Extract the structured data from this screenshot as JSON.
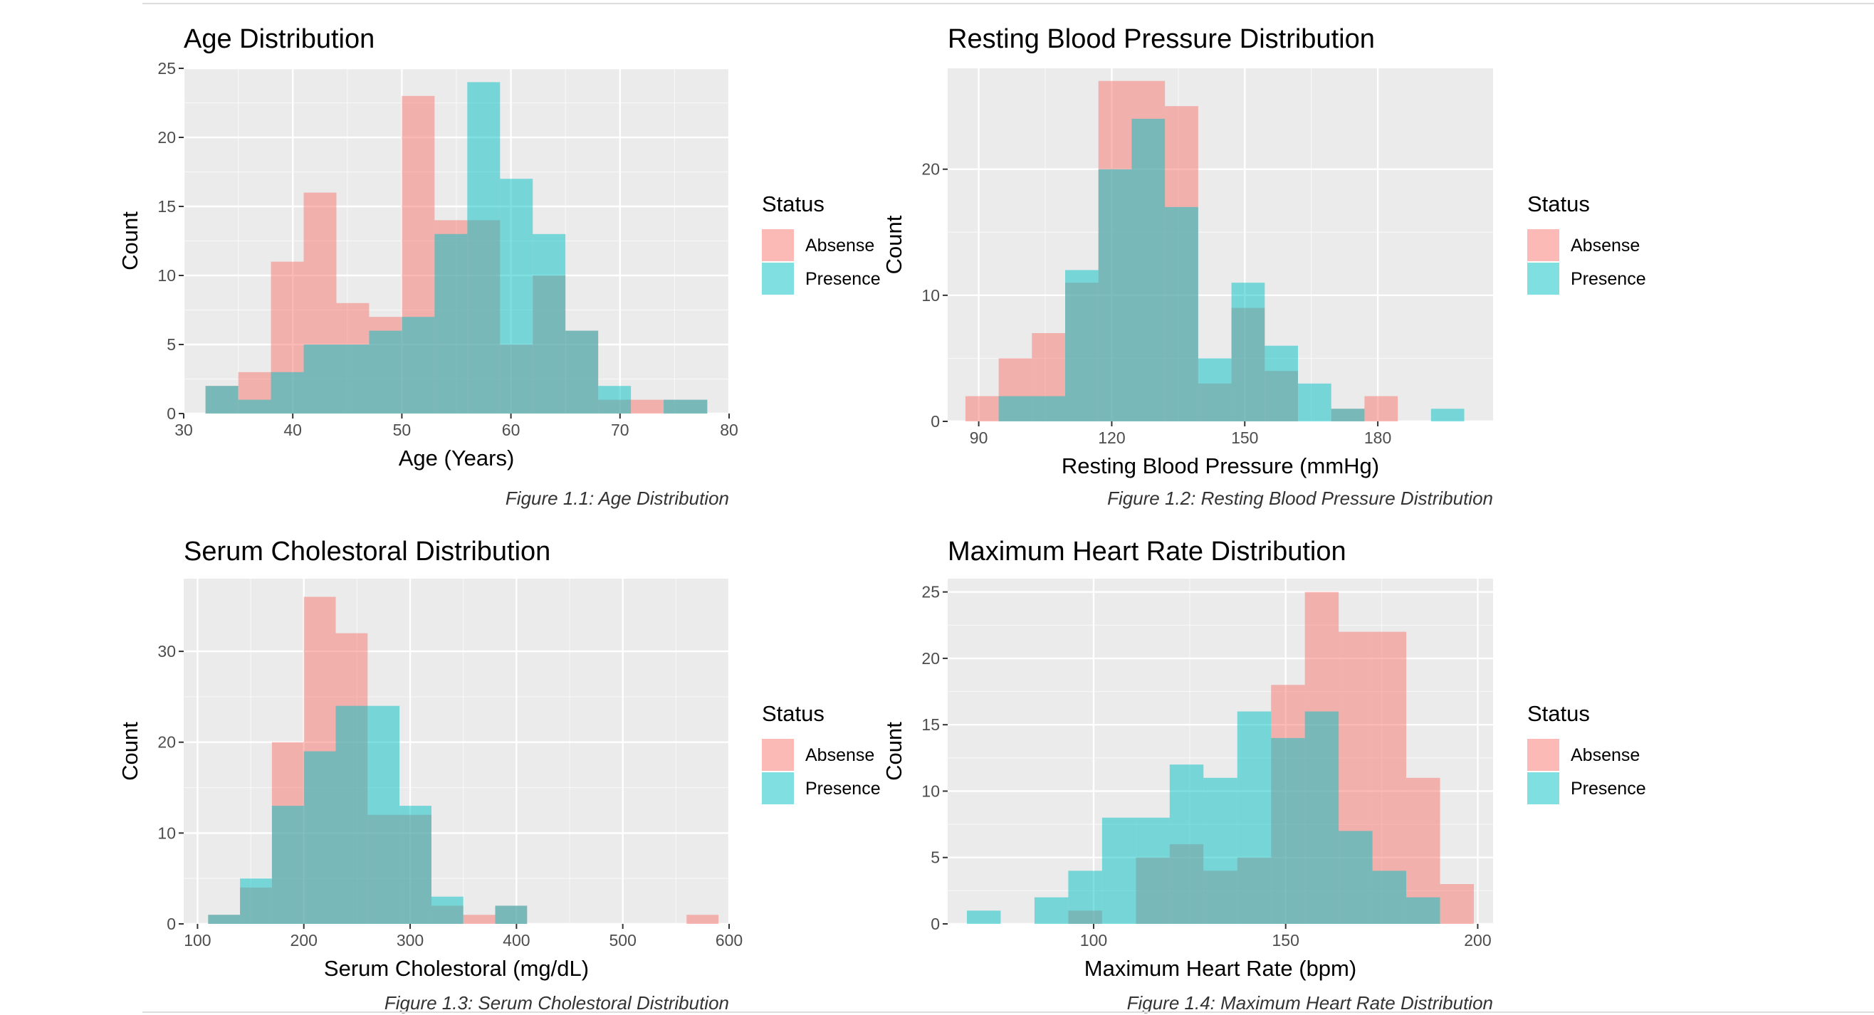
{
  "colors": {
    "absence": "#F8766D",
    "presence": "#00BFC4",
    "panel_bg": "#EBEBEB",
    "grid": "#FFFFFF",
    "text": "#000000",
    "tick_text": "#4D4D4D",
    "caption_text": "#333333"
  },
  "legend": {
    "title": "Status",
    "items": [
      {
        "label": "Absense",
        "color": "#F8766D"
      },
      {
        "label": "Presence",
        "color": "#00BFC4"
      }
    ]
  },
  "chart_data": [
    {
      "type": "histogram",
      "id": "age",
      "title": "Age Distribution",
      "xlabel": "Age (Years)",
      "ylabel": "Count",
      "caption": "Figure 1.1: Age Distribution",
      "xlim": [
        30,
        80
      ],
      "ylim": [
        0,
        25
      ],
      "x_ticks": [
        30,
        40,
        50,
        60,
        70,
        80
      ],
      "y_ticks": [
        0,
        5,
        10,
        15,
        20,
        25
      ],
      "grid": true,
      "legend_position": "right",
      "bin_edges": [
        32,
        35,
        38,
        41,
        44,
        47,
        50,
        53,
        56,
        59,
        62,
        65,
        68,
        71,
        74,
        78
      ],
      "series": [
        {
          "name": "Absense",
          "values": [
            2,
            3,
            11,
            16,
            8,
            7,
            23,
            14,
            14,
            5,
            10,
            6,
            1,
            1,
            1
          ]
        },
        {
          "name": "Presence",
          "values": [
            2,
            1,
            3,
            5,
            5,
            6,
            7,
            13,
            24,
            17,
            13,
            6,
            2,
            0,
            1
          ]
        }
      ]
    },
    {
      "type": "histogram",
      "id": "bp",
      "title": "Resting Blood Pressure Distribution",
      "xlabel": "Resting Blood Pressure (mmHg)",
      "ylabel": "Count",
      "caption": "Figure 1.2: Resting Blood Pressure Distribution",
      "xlim": [
        83,
        206
      ],
      "ylim": [
        0,
        28
      ],
      "x_ticks": [
        90,
        120,
        150,
        180
      ],
      "y_ticks": [
        0,
        10,
        20
      ],
      "grid": true,
      "legend_position": "right",
      "bin_edges": [
        87,
        94.5,
        102,
        109.5,
        117,
        124.5,
        132,
        139.5,
        147,
        154.5,
        162,
        169.5,
        177,
        184.5,
        192,
        199.5
      ],
      "series": [
        {
          "name": "Absense",
          "values": [
            2,
            5,
            7,
            11,
            27,
            27,
            25,
            3,
            9,
            4,
            0,
            1,
            2,
            0,
            0
          ]
        },
        {
          "name": "Presence",
          "values": [
            0,
            2,
            2,
            12,
            20,
            24,
            17,
            5,
            11,
            6,
            3,
            1,
            0,
            0,
            1
          ]
        }
      ]
    },
    {
      "type": "histogram",
      "id": "chol",
      "title": "Serum Cholestoral Distribution",
      "xlabel": "Serum Cholestoral (mg/dL)",
      "ylabel": "Count",
      "caption": "Figure 1.3: Serum Cholestoral Distribution",
      "xlim": [
        87,
        600
      ],
      "ylim": [
        0,
        38
      ],
      "x_ticks": [
        100,
        200,
        300,
        400,
        500,
        600
      ],
      "y_ticks": [
        0,
        10,
        20,
        30
      ],
      "grid": true,
      "legend_position": "right",
      "bin_edges": [
        110,
        140,
        170,
        200,
        230,
        260,
        290,
        320,
        350,
        380,
        410,
        440,
        470,
        500,
        530,
        560,
        590
      ],
      "series": [
        {
          "name": "Absense",
          "values": [
            1,
            4,
            20,
            36,
            32,
            12,
            12,
            2,
            1,
            2,
            0,
            0,
            0,
            0,
            0,
            1
          ]
        },
        {
          "name": "Presence",
          "values": [
            1,
            5,
            13,
            19,
            24,
            24,
            13,
            3,
            0,
            2,
            0,
            0,
            0,
            0,
            0,
            0
          ]
        }
      ]
    },
    {
      "type": "histogram",
      "id": "hr",
      "title": "Maximum Heart Rate Distribution",
      "xlabel": "Maximum Heart Rate (bpm)",
      "ylabel": "Count",
      "caption": "Figure 1.4: Maximum Heart Rate Distribution",
      "xlim": [
        62,
        204
      ],
      "ylim": [
        0,
        26
      ],
      "x_ticks": [
        100,
        150,
        200
      ],
      "y_ticks": [
        0,
        5,
        10,
        15,
        20,
        25
      ],
      "grid": true,
      "legend_position": "right",
      "bin_edges": [
        67,
        75.8,
        84.6,
        93.4,
        102.2,
        111,
        119.8,
        128.6,
        137.4,
        146.2,
        155,
        163.8,
        172.6,
        181.4,
        190.2,
        199
      ],
      "series": [
        {
          "name": "Absense",
          "values": [
            0,
            0,
            0,
            1,
            0,
            5,
            6,
            4,
            5,
            18,
            25,
            22,
            22,
            11,
            3
          ]
        },
        {
          "name": "Presence",
          "values": [
            1,
            0,
            2,
            4,
            8,
            8,
            12,
            11,
            16,
            14,
            16,
            7,
            4,
            2,
            0
          ]
        }
      ]
    }
  ]
}
